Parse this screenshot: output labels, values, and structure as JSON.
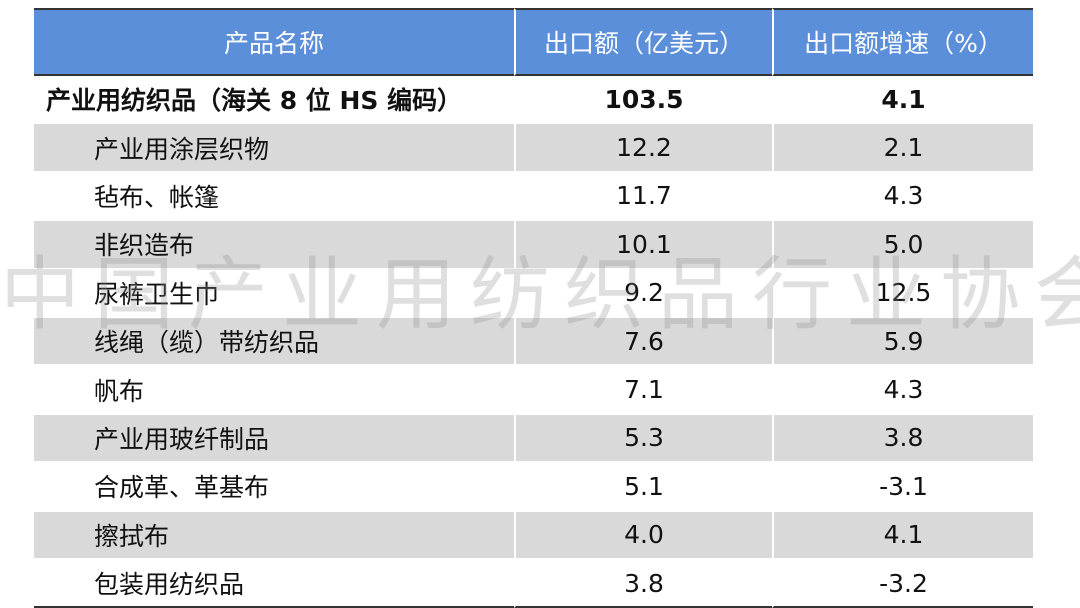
{
  "table": {
    "headers": [
      "产品名称",
      "出口额（亿美元）",
      "出口额增速（%）"
    ],
    "rows": [
      {
        "name": "产业用纺织品（海关 8 位 HS 编码）",
        "value": "103.5",
        "growth": "4.1"
      },
      {
        "name": "产业用涂层织物",
        "value": "12.2",
        "growth": "2.1"
      },
      {
        "name": "毡布、帐篷",
        "value": "11.7",
        "growth": "4.3"
      },
      {
        "name": "非织造布",
        "value": "10.1",
        "growth": "5.0"
      },
      {
        "name": "尿裤卫生巾",
        "value": "9.2",
        "growth": "12.5"
      },
      {
        "name": "线绳（缆）带纺织品",
        "value": "7.6",
        "growth": "5.9"
      },
      {
        "name": "帆布",
        "value": "7.1",
        "growth": "4.3"
      },
      {
        "name": "产业用玻纤制品",
        "value": "5.3",
        "growth": "3.8"
      },
      {
        "name": "合成革、革基布",
        "value": "5.1",
        "growth": "-3.1"
      },
      {
        "name": "擦拭布",
        "value": "4.0",
        "growth": "4.1"
      },
      {
        "name": "包装用纺织品",
        "value": "3.8",
        "growth": "-3.2"
      }
    ]
  },
  "watermark": "中国产业用纺织品行业协会",
  "colors": {
    "header_bg": "#5b8fd9",
    "shade_bg": "#d9d9d9"
  }
}
